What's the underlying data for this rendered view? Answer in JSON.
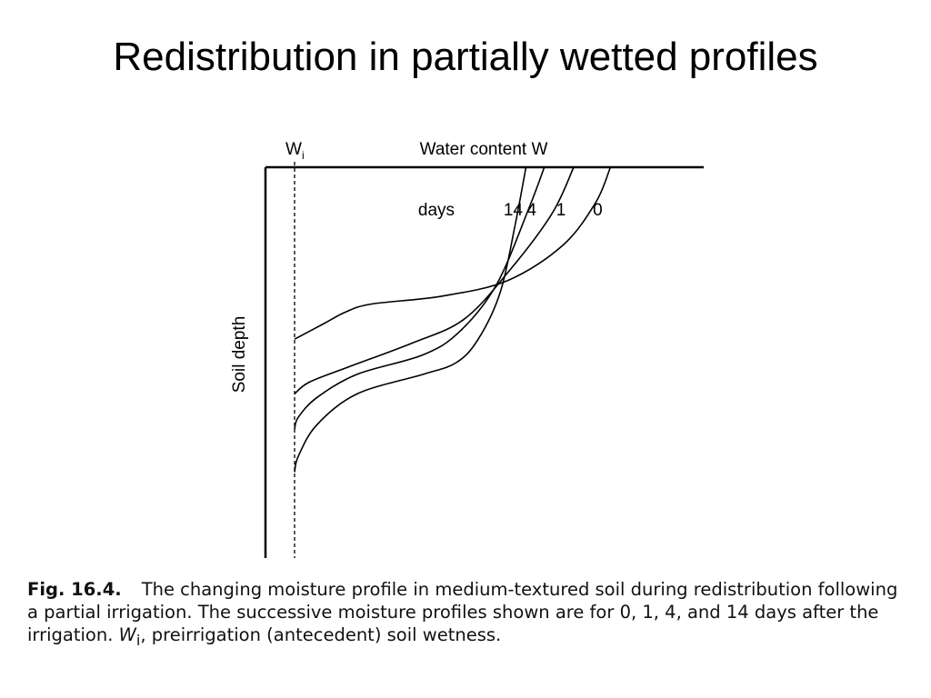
{
  "slide": {
    "title": "Redistribution in partially wetted profiles"
  },
  "chart_data": {
    "type": "line",
    "title": "",
    "xlabel": "Water content W",
    "ylabel": "Soil depth",
    "initial_marker": {
      "label": "W",
      "subscript": "i"
    },
    "curve_legend_prefix": "days",
    "xlim": [
      0,
      1
    ],
    "ylim": [
      0,
      1
    ],
    "axis_ticks": false,
    "grid": false,
    "series": [
      {
        "name": "0",
        "w": [
          0.86,
          0.82,
          0.73,
          0.58,
          0.4,
          0.21,
          0.14,
          0.08,
          0.0,
          0.0
        ],
        "d": [
          0.0,
          0.09,
          0.2,
          0.29,
          0.33,
          0.35,
          0.37,
          0.4,
          0.44,
          1.0
        ]
      },
      {
        "name": "1",
        "w": [
          0.76,
          0.7,
          0.58,
          0.46,
          0.32,
          0.15,
          0.04,
          0.0,
          0.0
        ],
        "d": [
          0.0,
          0.12,
          0.27,
          0.39,
          0.45,
          0.51,
          0.55,
          0.58,
          1.0
        ]
      },
      {
        "name": "4",
        "w": [
          0.68,
          0.64,
          0.55,
          0.45,
          0.35,
          0.17,
          0.06,
          0.01,
          0.0,
          0.0
        ],
        "d": [
          0.0,
          0.1,
          0.3,
          0.42,
          0.48,
          0.53,
          0.59,
          0.64,
          0.67,
          1.0
        ]
      },
      {
        "name": "14",
        "w": [
          0.63,
          0.6,
          0.56,
          0.5,
          0.44,
          0.35,
          0.17,
          0.06,
          0.01,
          0.0,
          0.0
        ],
        "d": [
          0.0,
          0.15,
          0.32,
          0.44,
          0.5,
          0.53,
          0.58,
          0.66,
          0.74,
          0.78,
          1.0
        ]
      }
    ]
  },
  "caption": {
    "fig_label": "Fig. 16.4.",
    "text_1": "The changing moisture profile in medium-textured soil during redistribution following a partial irrigation. The successive moisture profiles shown are for 0, 1, 4, and 14 days after the irrigation.",
    "wi_symbol": "W",
    "wi_subscript": "i",
    "text_2": ", preirrigation (antecedent) soil wetness."
  }
}
